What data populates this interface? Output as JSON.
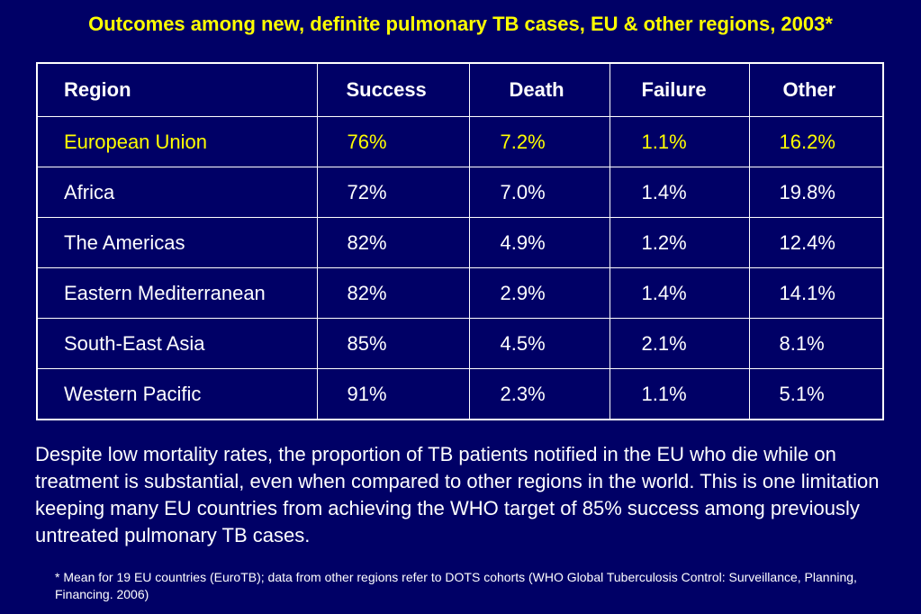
{
  "title": "Outcomes among new, definite pulmonary TB cases, EU & other regions, 2003*",
  "table": {
    "headers": [
      "Region",
      "Success",
      "Death",
      "Failure",
      "Other"
    ],
    "rows": [
      {
        "region": "European Union",
        "success": "76%",
        "death": "7.2%",
        "failure": "1.1%",
        "other": "16.2%",
        "highlight": true
      },
      {
        "region": "Africa",
        "success": "72%",
        "death": "7.0%",
        "failure": "1.4%",
        "other": "19.8%"
      },
      {
        "region": "The Americas",
        "success": "82%",
        "death": "4.9%",
        "failure": "1.2%",
        "other": "12.4%"
      },
      {
        "region": "Eastern Mediterranean",
        "success": "82%",
        "death": "2.9%",
        "failure": "1.4%",
        "other": "14.1%"
      },
      {
        "region": "South-East Asia",
        "success": "85%",
        "death": "4.5%",
        "failure": "2.1%",
        "other": "8.1%"
      },
      {
        "region": "Western Pacific",
        "success": "91%",
        "death": "2.3%",
        "failure": "1.1%",
        "other": "5.1%"
      }
    ]
  },
  "body_text": "Despite low mortality rates, the proportion of TB patients notified in the EU who die while on treatment is substantial, even when compared to other regions in the world. This is one limitation keeping many EU countries from achieving the WHO target of 85% success among previously untreated pulmonary TB cases.",
  "footnote": "* Mean for 19 EU countries (EuroTB); data from other regions refer to DOTS cohorts (WHO Global Tuberculosis Control: Surveillance, Planning, Financing. 2006)",
  "colors": {
    "background": "#000066",
    "title": "#ffff00",
    "text": "#ffffff",
    "highlight": "#ffff00"
  }
}
